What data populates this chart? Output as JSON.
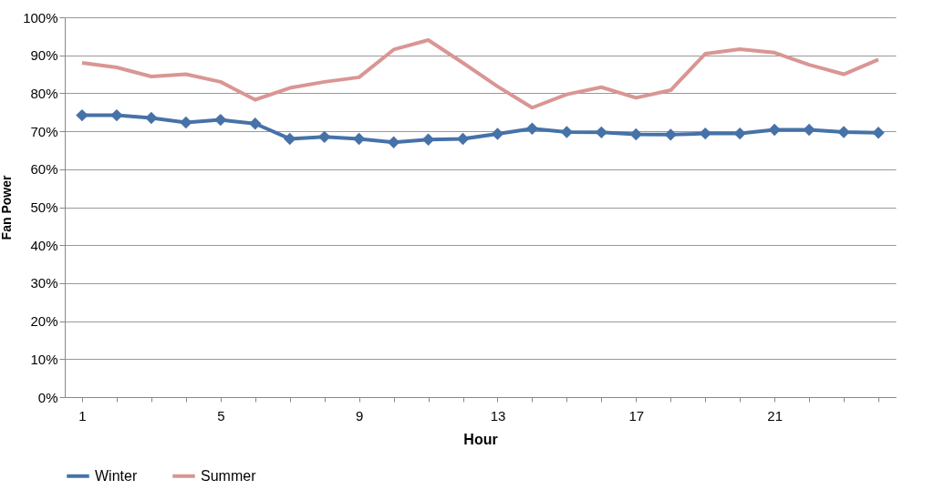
{
  "chart_data": {
    "type": "line",
    "xlabel": "Hour",
    "ylabel": "Fan Power",
    "categories": [
      "1",
      null,
      null,
      null,
      "5",
      null,
      null,
      null,
      "9",
      null,
      null,
      null,
      "13",
      null,
      null,
      null,
      "17",
      null,
      null,
      null,
      "21",
      null,
      null,
      null
    ],
    "series": [
      {
        "name": "Winter",
        "color": "#4672a8",
        "marker": "diamond",
        "values": [
          74.2,
          74.2,
          73.5,
          72.3,
          73,
          72,
          68,
          68.5,
          68,
          67.1,
          67.8,
          68,
          69.3,
          70.7,
          69.8,
          69.7,
          69.2,
          69.1,
          69.4,
          69.4,
          70.4,
          70.4,
          69.8,
          69.6
        ]
      },
      {
        "name": "Summer",
        "color": "#d99694",
        "marker": "none",
        "values": [
          88,
          86.8,
          84.4,
          85,
          83,
          78.3,
          81.4,
          83,
          84.2,
          91.5,
          94,
          88,
          81.8,
          76.2,
          79.7,
          81.6,
          78.8,
          80.8,
          90.4,
          91.6,
          90.7,
          87.5,
          85,
          88.9
        ]
      }
    ],
    "ylim": [
      0,
      100
    ],
    "yticks": [
      {
        "value": 0,
        "label": "0%"
      },
      {
        "value": 10,
        "label": "10%"
      },
      {
        "value": 20,
        "label": "20%"
      },
      {
        "value": 30,
        "label": "30%"
      },
      {
        "value": 40,
        "label": "40%"
      },
      {
        "value": 50,
        "label": "50%"
      },
      {
        "value": 60,
        "label": "60%"
      },
      {
        "value": 70,
        "label": "70%"
      },
      {
        "value": 80,
        "label": "80%"
      },
      {
        "value": 90,
        "label": "90%"
      },
      {
        "value": 100,
        "label": "100%"
      }
    ],
    "grid": "y",
    "legend": "bottom",
    "line_style": "solid"
  }
}
